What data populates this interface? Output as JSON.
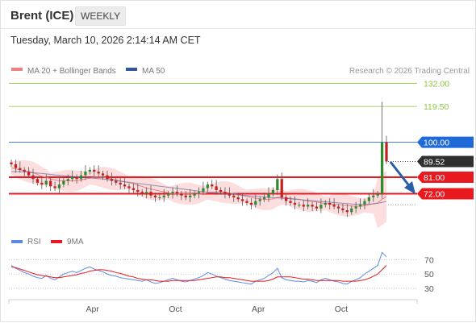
{
  "header": {
    "instrument": "Brent (ICE)",
    "timeframe": "WEEKLY",
    "datetime": "Tuesday, March 10, 2026 2:14:14 AM CET"
  },
  "legend": {
    "ma20_bollinger": "MA 20 + Bollinger Bands",
    "ma50": "MA 50",
    "copyright": "Research © 2026 Trading Central",
    "rsi": "RSI",
    "rsi_ma": "9MA"
  },
  "colors": {
    "bollinger_band": "#fbd3d3",
    "ma20": "#f08080",
    "ma50": "#5c6ea8",
    "candle_up": "#2e8b2e",
    "candle_down": "#c81e1e",
    "level_green": "#8dc63f",
    "level_blue": "#1f6ad6",
    "level_red": "#e8191f",
    "rsi": "#5b8be0",
    "rsi_ma": "#e8191f",
    "arrow": "#2a5ca8"
  },
  "chart_data": [
    {
      "type": "candlestick",
      "title": "Brent (ICE)",
      "x_tick_labels": [
        "Apr",
        "Oct",
        "Apr",
        "Oct"
      ],
      "ylim": [
        56,
        134
      ],
      "levels": [
        {
          "value": 132.0,
          "label": "132.00",
          "kind": "target"
        },
        {
          "value": 119.5,
          "label": "119.50",
          "kind": "target"
        },
        {
          "value": 100.0,
          "label": "100.00",
          "kind": "pivot"
        },
        {
          "value": 89.52,
          "label": "89.52",
          "kind": "last"
        },
        {
          "value": 81.0,
          "label": "81.00",
          "kind": "support"
        },
        {
          "value": 72.0,
          "label": "72.00",
          "kind": "support"
        }
      ],
      "close": [
        88,
        86,
        85,
        84,
        82,
        80,
        78,
        77,
        79,
        76,
        75,
        77,
        79,
        80,
        81,
        80,
        82,
        84,
        85,
        84,
        83,
        82,
        80,
        79,
        78,
        77,
        76,
        75,
        74,
        73,
        72,
        73,
        71,
        70,
        70,
        71,
        72,
        73,
        72,
        71,
        70,
        71,
        72,
        73,
        75,
        77,
        76,
        74,
        73,
        72,
        71,
        70,
        69,
        68,
        67,
        66,
        68,
        69,
        70,
        72,
        74,
        80,
        70,
        68,
        67,
        66,
        66,
        65,
        66,
        65,
        64,
        66,
        67,
        66,
        65,
        64,
        63,
        62,
        64,
        65,
        66,
        68,
        70,
        71,
        72,
        100,
        89.52
      ],
      "ma20": [
        86,
        85.5,
        85,
        84.5,
        84,
        83.5,
        82.5,
        81.5,
        81,
        80,
        79.5,
        79,
        79,
        79,
        79,
        79,
        79.5,
        80,
        80.5,
        81,
        81,
        81,
        80.5,
        80,
        79.5,
        79,
        78.5,
        78,
        77.5,
        76.5,
        76,
        75,
        74.5,
        74,
        73.5,
        73,
        72.5,
        72,
        72,
        72,
        72,
        72,
        71.8,
        71.8,
        72,
        72.5,
        72.8,
        73,
        73,
        72.8,
        72.5,
        72,
        71.5,
        71,
        70.5,
        70,
        69.5,
        69.2,
        69,
        69,
        69.2,
        70,
        70,
        69.8,
        69.5,
        69.2,
        69,
        68.5,
        68,
        67.8,
        67.5,
        67,
        66.8,
        66.5,
        66.3,
        66,
        65.8,
        65.5,
        65.3,
        65.2,
        65.2,
        65.5,
        66,
        66.5,
        67,
        69,
        70.5
      ],
      "ma50": [
        84,
        84,
        84,
        83.8,
        83.6,
        83.4,
        83.2,
        83,
        82.8,
        82.5,
        82.2,
        82,
        81.8,
        81.6,
        81.4,
        81.2,
        81,
        80.8,
        80.6,
        80.4,
        80.2,
        80,
        79.7,
        79.4,
        79.1,
        78.8,
        78.5,
        78.2,
        77.9,
        77.6,
        77.3,
        77,
        76.7,
        76.4,
        76.1,
        75.8,
        75.5,
        75.2,
        74.9,
        74.6,
        74.3,
        74,
        73.7,
        73.4,
        73.1,
        72.8,
        72.6,
        72.4,
        72.2,
        72,
        71.8,
        71.6,
        71.4,
        71.2,
        71,
        70.8,
        70.6,
        70.4,
        70.2,
        70,
        69.8,
        69.7,
        69.6,
        69.4,
        69.2,
        69,
        68.8,
        68.6,
        68.4,
        68.2,
        68,
        67.8,
        67.6,
        67.4,
        67.2,
        67,
        66.8,
        66.6,
        66.4,
        66.3,
        66.2,
        66.2,
        66.3,
        66.5,
        66.8,
        67.3,
        67.8
      ]
    },
    {
      "type": "line",
      "title": "RSI",
      "ylim": [
        20,
        85
      ],
      "y_tick_labels": [
        "70",
        "50",
        "30"
      ],
      "series": [
        {
          "name": "RSI",
          "values": [
            62,
            58,
            55,
            52,
            50,
            47,
            45,
            44,
            48,
            44,
            42,
            46,
            50,
            52,
            54,
            52,
            55,
            58,
            60,
            57,
            55,
            53,
            50,
            48,
            47,
            45,
            44,
            43,
            42,
            41,
            40,
            42,
            39,
            37,
            38,
            40,
            42,
            44,
            42,
            40,
            39,
            41,
            43,
            45,
            48,
            52,
            50,
            47,
            45,
            43,
            41,
            40,
            39,
            38,
            37,
            36,
            40,
            42,
            44,
            48,
            52,
            58,
            45,
            42,
            41,
            40,
            40,
            39,
            41,
            40,
            38,
            42,
            44,
            42,
            40,
            39,
            37,
            36,
            40,
            42,
            45,
            50,
            54,
            58,
            62,
            80,
            74
          ]
        },
        {
          "name": "9MA",
          "values": [
            60,
            59,
            57,
            55,
            53,
            51,
            49,
            48,
            47,
            46,
            45,
            45,
            46,
            47,
            48,
            49,
            51,
            52,
            54,
            55,
            56,
            56,
            55,
            54,
            52,
            51,
            49,
            47,
            46,
            44,
            43,
            42,
            42,
            41,
            40,
            40,
            40,
            41,
            41,
            41,
            41,
            41,
            41,
            42,
            43,
            44,
            45,
            46,
            46,
            45,
            45,
            44,
            43,
            42,
            41,
            40,
            40,
            40,
            40,
            41,
            43,
            46,
            46,
            46,
            46,
            45,
            44,
            43,
            43,
            42,
            41,
            41,
            41,
            41,
            41,
            41,
            40,
            40,
            40,
            40,
            41,
            42,
            44,
            47,
            50,
            56,
            62
          ]
        }
      ]
    }
  ]
}
